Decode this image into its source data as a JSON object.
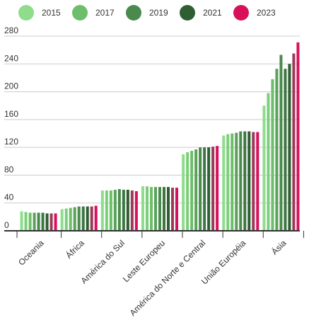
{
  "chart_data": {
    "type": "bar",
    "title": "",
    "xlabel": "",
    "ylabel": "",
    "ylim": [
      0,
      280
    ],
    "yticks": [
      0,
      40,
      80,
      120,
      160,
      200,
      240,
      280
    ],
    "grid": true,
    "legend_position": "top",
    "categories": [
      "Oceania",
      "África",
      "América do Sul",
      "Leste Europeu",
      "América do Norte e Central",
      "União Européia",
      "Ásia"
    ],
    "series": [
      {
        "name": "2015",
        "color": "#8fdc8c",
        "values": [
          28,
          31,
          58,
          64,
          110,
          137,
          180
        ]
      },
      {
        "name": "2016",
        "color": "#7ccf7a",
        "values": [
          27,
          32,
          58,
          64,
          113,
          139,
          198
        ]
      },
      {
        "name": "2017",
        "color": "#6cbe6a",
        "values": [
          26,
          33,
          58,
          63,
          115,
          140,
          218
        ]
      },
      {
        "name": "2018",
        "color": "#5aa25a",
        "values": [
          26,
          34,
          59,
          63,
          117,
          141,
          233
        ]
      },
      {
        "name": "2019",
        "color": "#4a8a4c",
        "values": [
          26,
          35,
          60,
          63,
          120,
          143,
          253
        ]
      },
      {
        "name": "2020",
        "color": "#3e7642",
        "values": [
          26,
          35,
          59,
          63,
          120,
          143,
          233
        ]
      },
      {
        "name": "2021",
        "color": "#2f5e33",
        "values": [
          25,
          35,
          59,
          63,
          120,
          143,
          240
        ]
      },
      {
        "name": "2022",
        "color": "#9a3a5a",
        "values": [
          25,
          35,
          58,
          62,
          121,
          142,
          255
        ]
      },
      {
        "name": "2023",
        "color": "#d8105a",
        "values": [
          25,
          36,
          57,
          62,
          122,
          142,
          271
        ]
      }
    ]
  },
  "legend": [
    {
      "label": "2015",
      "color": "#8fdc8c"
    },
    {
      "label": "2017",
      "color": "#6cbe6a"
    },
    {
      "label": "2019",
      "color": "#4a8a4c"
    },
    {
      "label": "2021",
      "color": "#2f5e33"
    },
    {
      "label": "2023",
      "color": "#d8105a"
    }
  ],
  "colors": {
    "grid": "#cccccc",
    "axis": "#333333",
    "text": "#333333"
  }
}
